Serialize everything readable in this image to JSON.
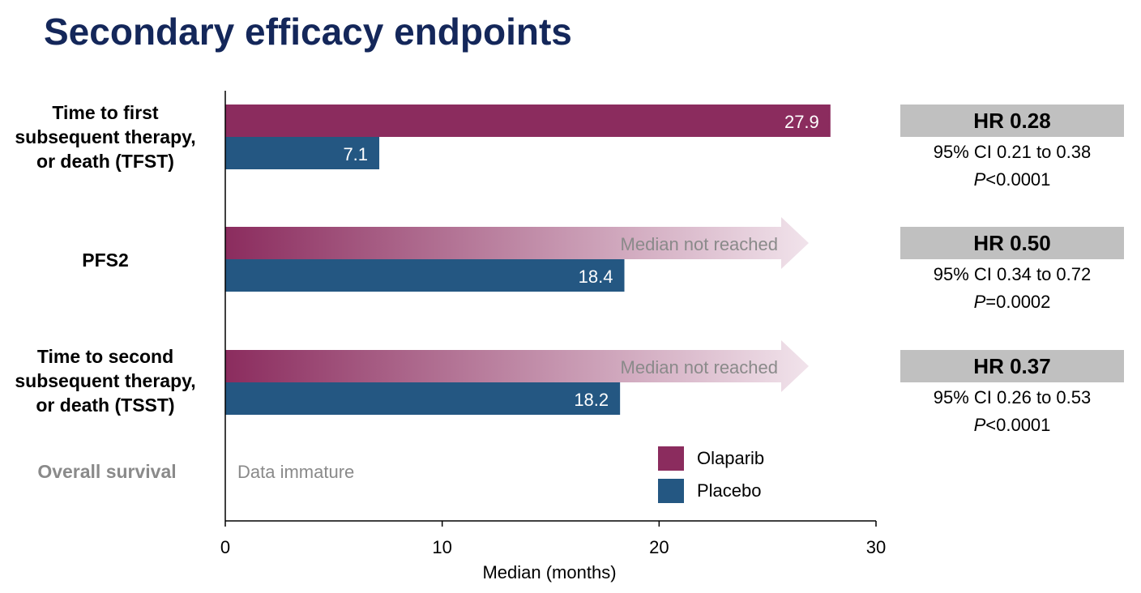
{
  "page": {
    "title": "Secondary efficacy endpoints"
  },
  "colors": {
    "olaparib": "#8b2c5e",
    "placebo": "#245782",
    "title": "#14275a",
    "hr_box": "#c0c0c0",
    "muted_text": "#8a8a8a"
  },
  "chart_data": {
    "type": "bar",
    "orientation": "horizontal",
    "xlabel": "Median (months)",
    "xlim": [
      0,
      30
    ],
    "xticks": [
      "0",
      "10",
      "20",
      "30"
    ],
    "categories": [
      {
        "lines": [
          "Time to first",
          "subsequent therapy,",
          "or death (TFST)"
        ]
      },
      {
        "lines": [
          "PFS2"
        ]
      },
      {
        "lines": [
          "Time to second",
          "subsequent therapy,",
          "or death (TSST)"
        ]
      },
      {
        "lines": [
          "Overall survival"
        ],
        "muted": true
      }
    ],
    "series": [
      {
        "name": "Olaparib",
        "values": [
          27.9,
          null,
          null,
          null
        ],
        "labels": [
          "27.9",
          "Median not reached",
          "Median not reached",
          null
        ]
      },
      {
        "name": "Placebo",
        "values": [
          7.1,
          18.4,
          18.2,
          null
        ],
        "labels": [
          "7.1",
          "18.4",
          "18.2",
          null
        ]
      }
    ],
    "annotations": [
      {
        "category_index": 3,
        "text": "Data immature"
      }
    ],
    "legend": {
      "position": "bottom-right",
      "entries": [
        "Olaparib",
        "Placebo"
      ]
    },
    "hazard_ratios": [
      {
        "hr": "HR 0.28",
        "ci": "95% CI 0.21 to 0.38",
        "p_symbol": "P",
        "p_rest": "<0.0001"
      },
      {
        "hr": "HR 0.50",
        "ci": "95% CI 0.34 to 0.72",
        "p_symbol": "P",
        "p_rest": "=0.0002"
      },
      {
        "hr": "HR 0.37",
        "ci": "95% CI 0.26 to 0.53",
        "p_symbol": "P",
        "p_rest": "<0.0001"
      }
    ]
  }
}
